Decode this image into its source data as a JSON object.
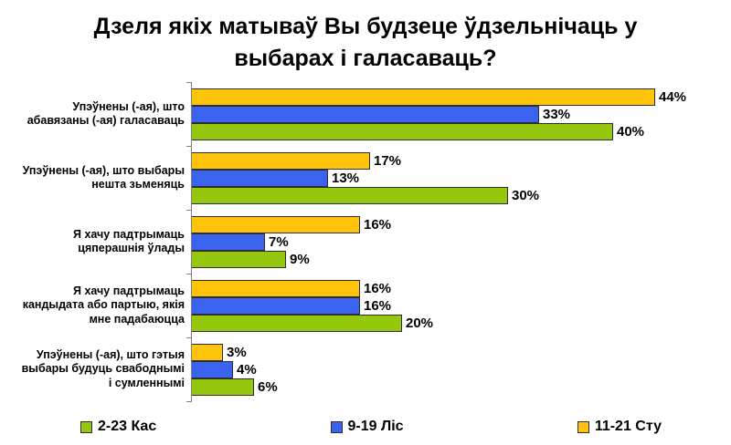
{
  "title": {
    "line1": "Дзеля якіх матываў Вы будзеце ўдзельнічаць у",
    "line2": "выбарах і галасаваць?"
  },
  "colors": {
    "green": "#95C70E",
    "blue": "#3A63F0",
    "yellow": "#FFC30B",
    "bar_border": "#2e2e2e",
    "axis": "#7f7f7f",
    "background": "#ffffff",
    "text": "#000000"
  },
  "chart_data": {
    "type": "bar",
    "orientation": "horizontal",
    "title": "Дзеля якіх матываў Вы будзеце ўдзельнічаць у выбарах і галасаваць?",
    "categories": [
      "Упэўнены (-ая), што абавязаны (-ая) галасаваць",
      "Упэўнены (-ая), што выбары нешта зьменяць",
      "Я хачу падтрымаць цяперашнія ўлады",
      "Я хачу падтрымаць кандыдата або партыю, якія мне падабаюцца",
      "Упэўнены (-ая), што гэтыя выбары будуць свабоднымі і сумленнымі"
    ],
    "category_lines": [
      [
        "Упэўнены (-ая), што",
        "абавязаны (-ая) галасаваць"
      ],
      [
        "Упэўнены (-ая), што выбары",
        "нешта зьменяць"
      ],
      [
        "Я хачу падтрымаць",
        "цяперашнія ўлады"
      ],
      [
        "Я хачу падтрымаць",
        "кандыдата або партыю, якія",
        "мне падабаюцца"
      ],
      [
        "Упэўнены (-ая), што гэтыя",
        "выбары будуць свабоднымі",
        "і сумленнымі"
      ]
    ],
    "series": [
      {
        "name": "2-23 Кас",
        "color_key": "green",
        "values": [
          40,
          30,
          9,
          20,
          6
        ]
      },
      {
        "name": "9-19 Ліс",
        "color_key": "blue",
        "values": [
          33,
          13,
          7,
          16,
          4
        ]
      },
      {
        "name": "11-21 Сту",
        "color_key": "yellow",
        "values": [
          44,
          17,
          16,
          16,
          3
        ]
      }
    ],
    "bar_order_top_to_bottom": [
      2,
      1,
      0
    ],
    "value_suffix": "%",
    "xlim": [
      0,
      46
    ],
    "grid": false,
    "legend_position": "bottom"
  }
}
